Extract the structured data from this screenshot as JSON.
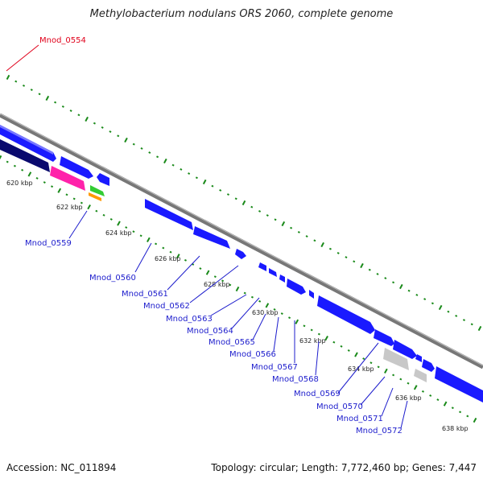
{
  "title": "Methylobacterium nodulans ORS 2060, complete genome",
  "footer": {
    "accession": "Accession: NC_011894",
    "summary": "Topology: circular; Length: 7,772,460 bp; Genes: 7,447"
  },
  "highlight_gene": {
    "label": "Mnod_0554",
    "color": "#e0001a"
  },
  "colors": {
    "backbone": "#888888",
    "forward_gene": "#1a1aff",
    "dark_gene": "#0a0a6e",
    "magenta_gene": "#ff22aa",
    "green_gene": "#33cc33",
    "orange_gene": "#ff9900",
    "pseudo_gene": "#c8c8c8",
    "tick_dots": "#1a8a1a",
    "label": "#1c1ccc"
  },
  "scale_ticks": [
    "620 kbp",
    "622 kbp",
    "624 kbp",
    "626 kbp",
    "628 kbp",
    "630 kbp",
    "632 kbp",
    "634 kbp",
    "636 kbp",
    "638 kbp"
  ],
  "gene_labels": [
    "Mnod_0559",
    "Mnod_0560",
    "Mnod_0561",
    "Mnod_0562",
    "Mnod_0563",
    "Mnod_0564",
    "Mnod_0565",
    "Mnod_0566",
    "Mnod_0567",
    "Mnod_0568",
    "Mnod_0569",
    "Mnod_0570",
    "Mnod_0571",
    "Mnod_0572"
  ]
}
